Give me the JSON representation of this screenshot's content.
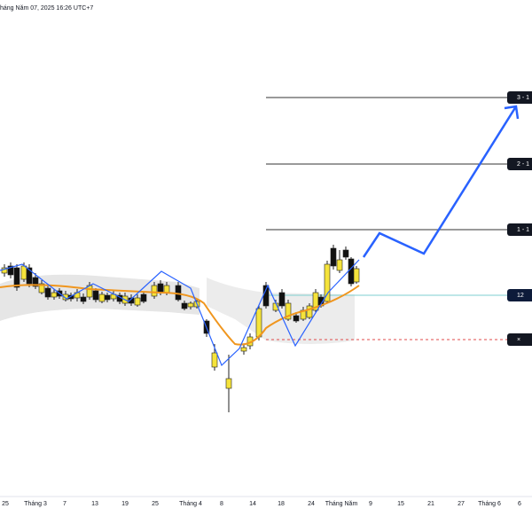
{
  "header": {
    "timestamp": "háng Năm 07, 2025 16:26 UTC+7"
  },
  "levels": [
    "3 - 1",
    "2 - 1",
    "1 - 1",
    "12",
    "×"
  ],
  "x_axis": {
    "labels": [
      "25",
      "Tháng 3",
      "7",
      "13",
      "19",
      "25",
      "Tháng 4",
      "8",
      "14",
      "18",
      "24",
      "Tháng Năm",
      "9",
      "15",
      "21",
      "27",
      "Tháng 6",
      "6"
    ]
  }
}
